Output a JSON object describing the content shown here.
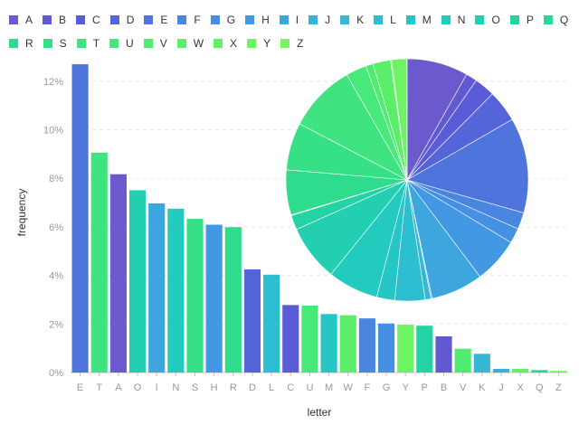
{
  "chart_data": {
    "type": "bar",
    "xlabel": "letter",
    "ylabel": "frequency",
    "ylim": [
      0,
      0.12
    ],
    "yticks": [
      0,
      0.02,
      0.04,
      0.06,
      0.08,
      0.1,
      0.12
    ],
    "ytick_labels": [
      "0%",
      "2%",
      "4%",
      "6%",
      "8%",
      "10%",
      "12%"
    ],
    "grid": true,
    "legend_position": "top",
    "legend": [
      "A",
      "B",
      "C",
      "D",
      "E",
      "F",
      "G",
      "H",
      "I",
      "J",
      "K",
      "L",
      "M",
      "N",
      "O",
      "P",
      "Q",
      "R",
      "S",
      "T",
      "U",
      "V",
      "W",
      "X",
      "Y",
      "Z"
    ],
    "colors": {
      "A": "#6a5acd",
      "B": "#6259d1",
      "C": "#595cd6",
      "D": "#5564d9",
      "E": "#4f75dd",
      "F": "#4a85e0",
      "G": "#4690e3",
      "H": "#4298e2",
      "I": "#3ea6df",
      "J": "#39b1da",
      "K": "#34b8d5",
      "L": "#2dbfcf",
      "M": "#26c6c6",
      "N": "#22cbbd",
      "O": "#22cfb1",
      "P": "#24d3a4",
      "Q": "#28d796",
      "R": "#2fdb8d",
      "S": "#36e086",
      "T": "#3fe480",
      "U": "#48e87a",
      "V": "#51eb72",
      "W": "#5aee6b",
      "X": "#63f066",
      "Y": "#6df363",
      "Z": "#76f55f"
    },
    "bars": [
      {
        "letter": "E",
        "value": 0.127
      },
      {
        "letter": "T",
        "value": 0.0906
      },
      {
        "letter": "A",
        "value": 0.0817
      },
      {
        "letter": "O",
        "value": 0.0751
      },
      {
        "letter": "I",
        "value": 0.0697
      },
      {
        "letter": "N",
        "value": 0.0675
      },
      {
        "letter": "S",
        "value": 0.0633
      },
      {
        "letter": "H",
        "value": 0.0609
      },
      {
        "letter": "R",
        "value": 0.0599
      },
      {
        "letter": "D",
        "value": 0.0425
      },
      {
        "letter": "L",
        "value": 0.0403
      },
      {
        "letter": "C",
        "value": 0.0278
      },
      {
        "letter": "U",
        "value": 0.0276
      },
      {
        "letter": "M",
        "value": 0.0241
      },
      {
        "letter": "W",
        "value": 0.0236
      },
      {
        "letter": "F",
        "value": 0.0223
      },
      {
        "letter": "G",
        "value": 0.0202
      },
      {
        "letter": "Y",
        "value": 0.0197
      },
      {
        "letter": "P",
        "value": 0.0193
      },
      {
        "letter": "B",
        "value": 0.0149
      },
      {
        "letter": "V",
        "value": 0.0098
      },
      {
        "letter": "K",
        "value": 0.0077
      },
      {
        "letter": "J",
        "value": 0.0015
      },
      {
        "letter": "X",
        "value": 0.0015
      },
      {
        "letter": "Q",
        "value": 0.001
      },
      {
        "letter": "Z",
        "value": 0.0007
      }
    ],
    "pie": {
      "type": "pie",
      "order": [
        "A",
        "B",
        "C",
        "D",
        "E",
        "F",
        "G",
        "H",
        "I",
        "J",
        "K",
        "L",
        "M",
        "N",
        "O",
        "P",
        "Q",
        "R",
        "S",
        "T",
        "U",
        "V",
        "W",
        "X",
        "Y",
        "Z"
      ]
    }
  }
}
